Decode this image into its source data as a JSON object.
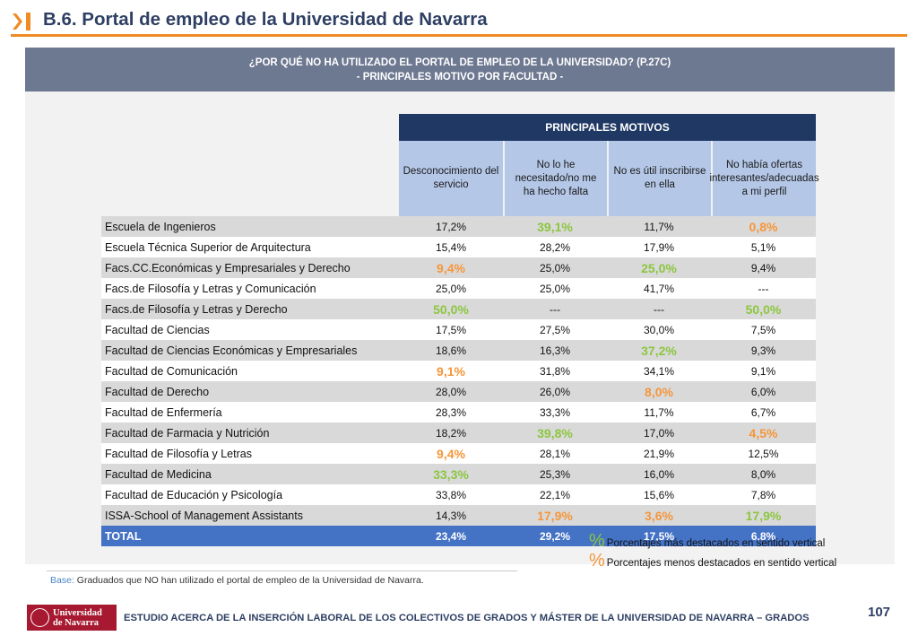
{
  "header": {
    "title": "B.6. Portal de empleo de la Universidad de Navarra",
    "icon": "chevron-bar-icon",
    "accent_color": "#f08a25",
    "title_color": "#2e3f63"
  },
  "banner": {
    "line1": "¿POR QUÉ NO HA UTILIZADO EL PORTAL DE EMPLEO DE LA UNIVERSIDAD? (P.27C)",
    "line2": "- PRINCIPALES MOTIVO POR FACULTAD -"
  },
  "table": {
    "group_header": "PRINCIPALES MOTIVOS",
    "columns": [
      "Desconocimiento del servicio",
      "No lo he necesitado/no me ha hecho falta",
      "No es útil inscribirse en ella",
      "No había ofertas interesantes/adecuadas a mi perfil"
    ],
    "rows": [
      {
        "name": "Escuela de Ingenieros",
        "values": [
          "17,2%",
          "39,1%",
          "11,7%",
          "0,8%"
        ],
        "marks": [
          "",
          "hi",
          "",
          "lo"
        ]
      },
      {
        "name": "Escuela Técnica Superior de Arquitectura",
        "values": [
          "15,4%",
          "28,2%",
          "17,9%",
          "5,1%"
        ],
        "marks": [
          "",
          "",
          "",
          ""
        ]
      },
      {
        "name": "Facs.CC.Económicas y Empresariales y Derecho",
        "values": [
          "9,4%",
          "25,0%",
          "25,0%",
          "9,4%"
        ],
        "marks": [
          "lo",
          "",
          "hi",
          ""
        ]
      },
      {
        "name": "Facs.de Filosofía y Letras y Comunicación",
        "values": [
          "25,0%",
          "25,0%",
          "41,7%",
          "---"
        ],
        "marks": [
          "",
          "",
          "",
          ""
        ]
      },
      {
        "name": "Facs.de Filosofía y Letras y Derecho",
        "values": [
          "50,0%",
          "---",
          "---",
          "50,0%"
        ],
        "marks": [
          "hi",
          "",
          "",
          "hi"
        ]
      },
      {
        "name": "Facultad de Ciencias",
        "values": [
          "17,5%",
          "27,5%",
          "30,0%",
          "7,5%"
        ],
        "marks": [
          "",
          "",
          "",
          ""
        ]
      },
      {
        "name": "Facultad de Ciencias Económicas y Empresariales",
        "values": [
          "18,6%",
          "16,3%",
          "37,2%",
          "9,3%"
        ],
        "marks": [
          "",
          "",
          "hi",
          ""
        ]
      },
      {
        "name": "Facultad de Comunicación",
        "values": [
          "9,1%",
          "31,8%",
          "34,1%",
          "9,1%"
        ],
        "marks": [
          "lo",
          "",
          "",
          ""
        ]
      },
      {
        "name": "Facultad de Derecho",
        "values": [
          "28,0%",
          "26,0%",
          "8,0%",
          "6,0%"
        ],
        "marks": [
          "",
          "",
          "lo",
          ""
        ]
      },
      {
        "name": "Facultad de Enfermería",
        "values": [
          "28,3%",
          "33,3%",
          "11,7%",
          "6,7%"
        ],
        "marks": [
          "",
          "",
          "",
          ""
        ]
      },
      {
        "name": "Facultad de Farmacia y Nutrición",
        "values": [
          "18,2%",
          "39,8%",
          "17,0%",
          "4,5%"
        ],
        "marks": [
          "",
          "hi",
          "",
          "lo"
        ]
      },
      {
        "name": "Facultad de Filosofía y Letras",
        "values": [
          "9,4%",
          "28,1%",
          "21,9%",
          "12,5%"
        ],
        "marks": [
          "lo",
          "",
          "",
          ""
        ]
      },
      {
        "name": "Facultad de Medicina",
        "values": [
          "33,3%",
          "25,3%",
          "16,0%",
          "8,0%"
        ],
        "marks": [
          "hi",
          "",
          "",
          ""
        ]
      },
      {
        "name": "Facultad de Educación y Psicología",
        "values": [
          "33,8%",
          "22,1%",
          "15,6%",
          "7,8%"
        ],
        "marks": [
          "",
          "",
          "",
          ""
        ]
      },
      {
        "name": "ISSA-School of Management Assistants",
        "values": [
          "14,3%",
          "17,9%",
          "3,6%",
          "17,9%"
        ],
        "marks": [
          "",
          "lo",
          "lo",
          "hi"
        ]
      }
    ],
    "total": {
      "name": "TOTAL",
      "values": [
        "23,4%",
        "29,2%",
        "17,5%",
        "6,8%"
      ]
    },
    "colors": {
      "group_header": "#1f3864",
      "subheader": "#b4c7e7",
      "total": "#4472c4",
      "highlight_high": "#8cc63f",
      "highlight_low": "#f5963a"
    }
  },
  "legend": {
    "symbol": "%",
    "high_label": "Porcentajes más destacados en sentido vertical",
    "low_label": "Porcentajes menos destacados en sentido vertical"
  },
  "base": {
    "label": "Base:",
    "text": " Graduados que NO han utilizado el  portal de empleo de la Universidad de Navarra."
  },
  "footer": {
    "logo_line1": "Universidad",
    "logo_line2": "de Navarra",
    "text": "ESTUDIO ACERCA DE LA INSERCIÓN LABORAL DE LOS COLECTIVOS DE GRADOS Y MÁSTER DE LA UNIVERSIDAD DE NAVARRA – GRADOS",
    "page_number": "107"
  }
}
